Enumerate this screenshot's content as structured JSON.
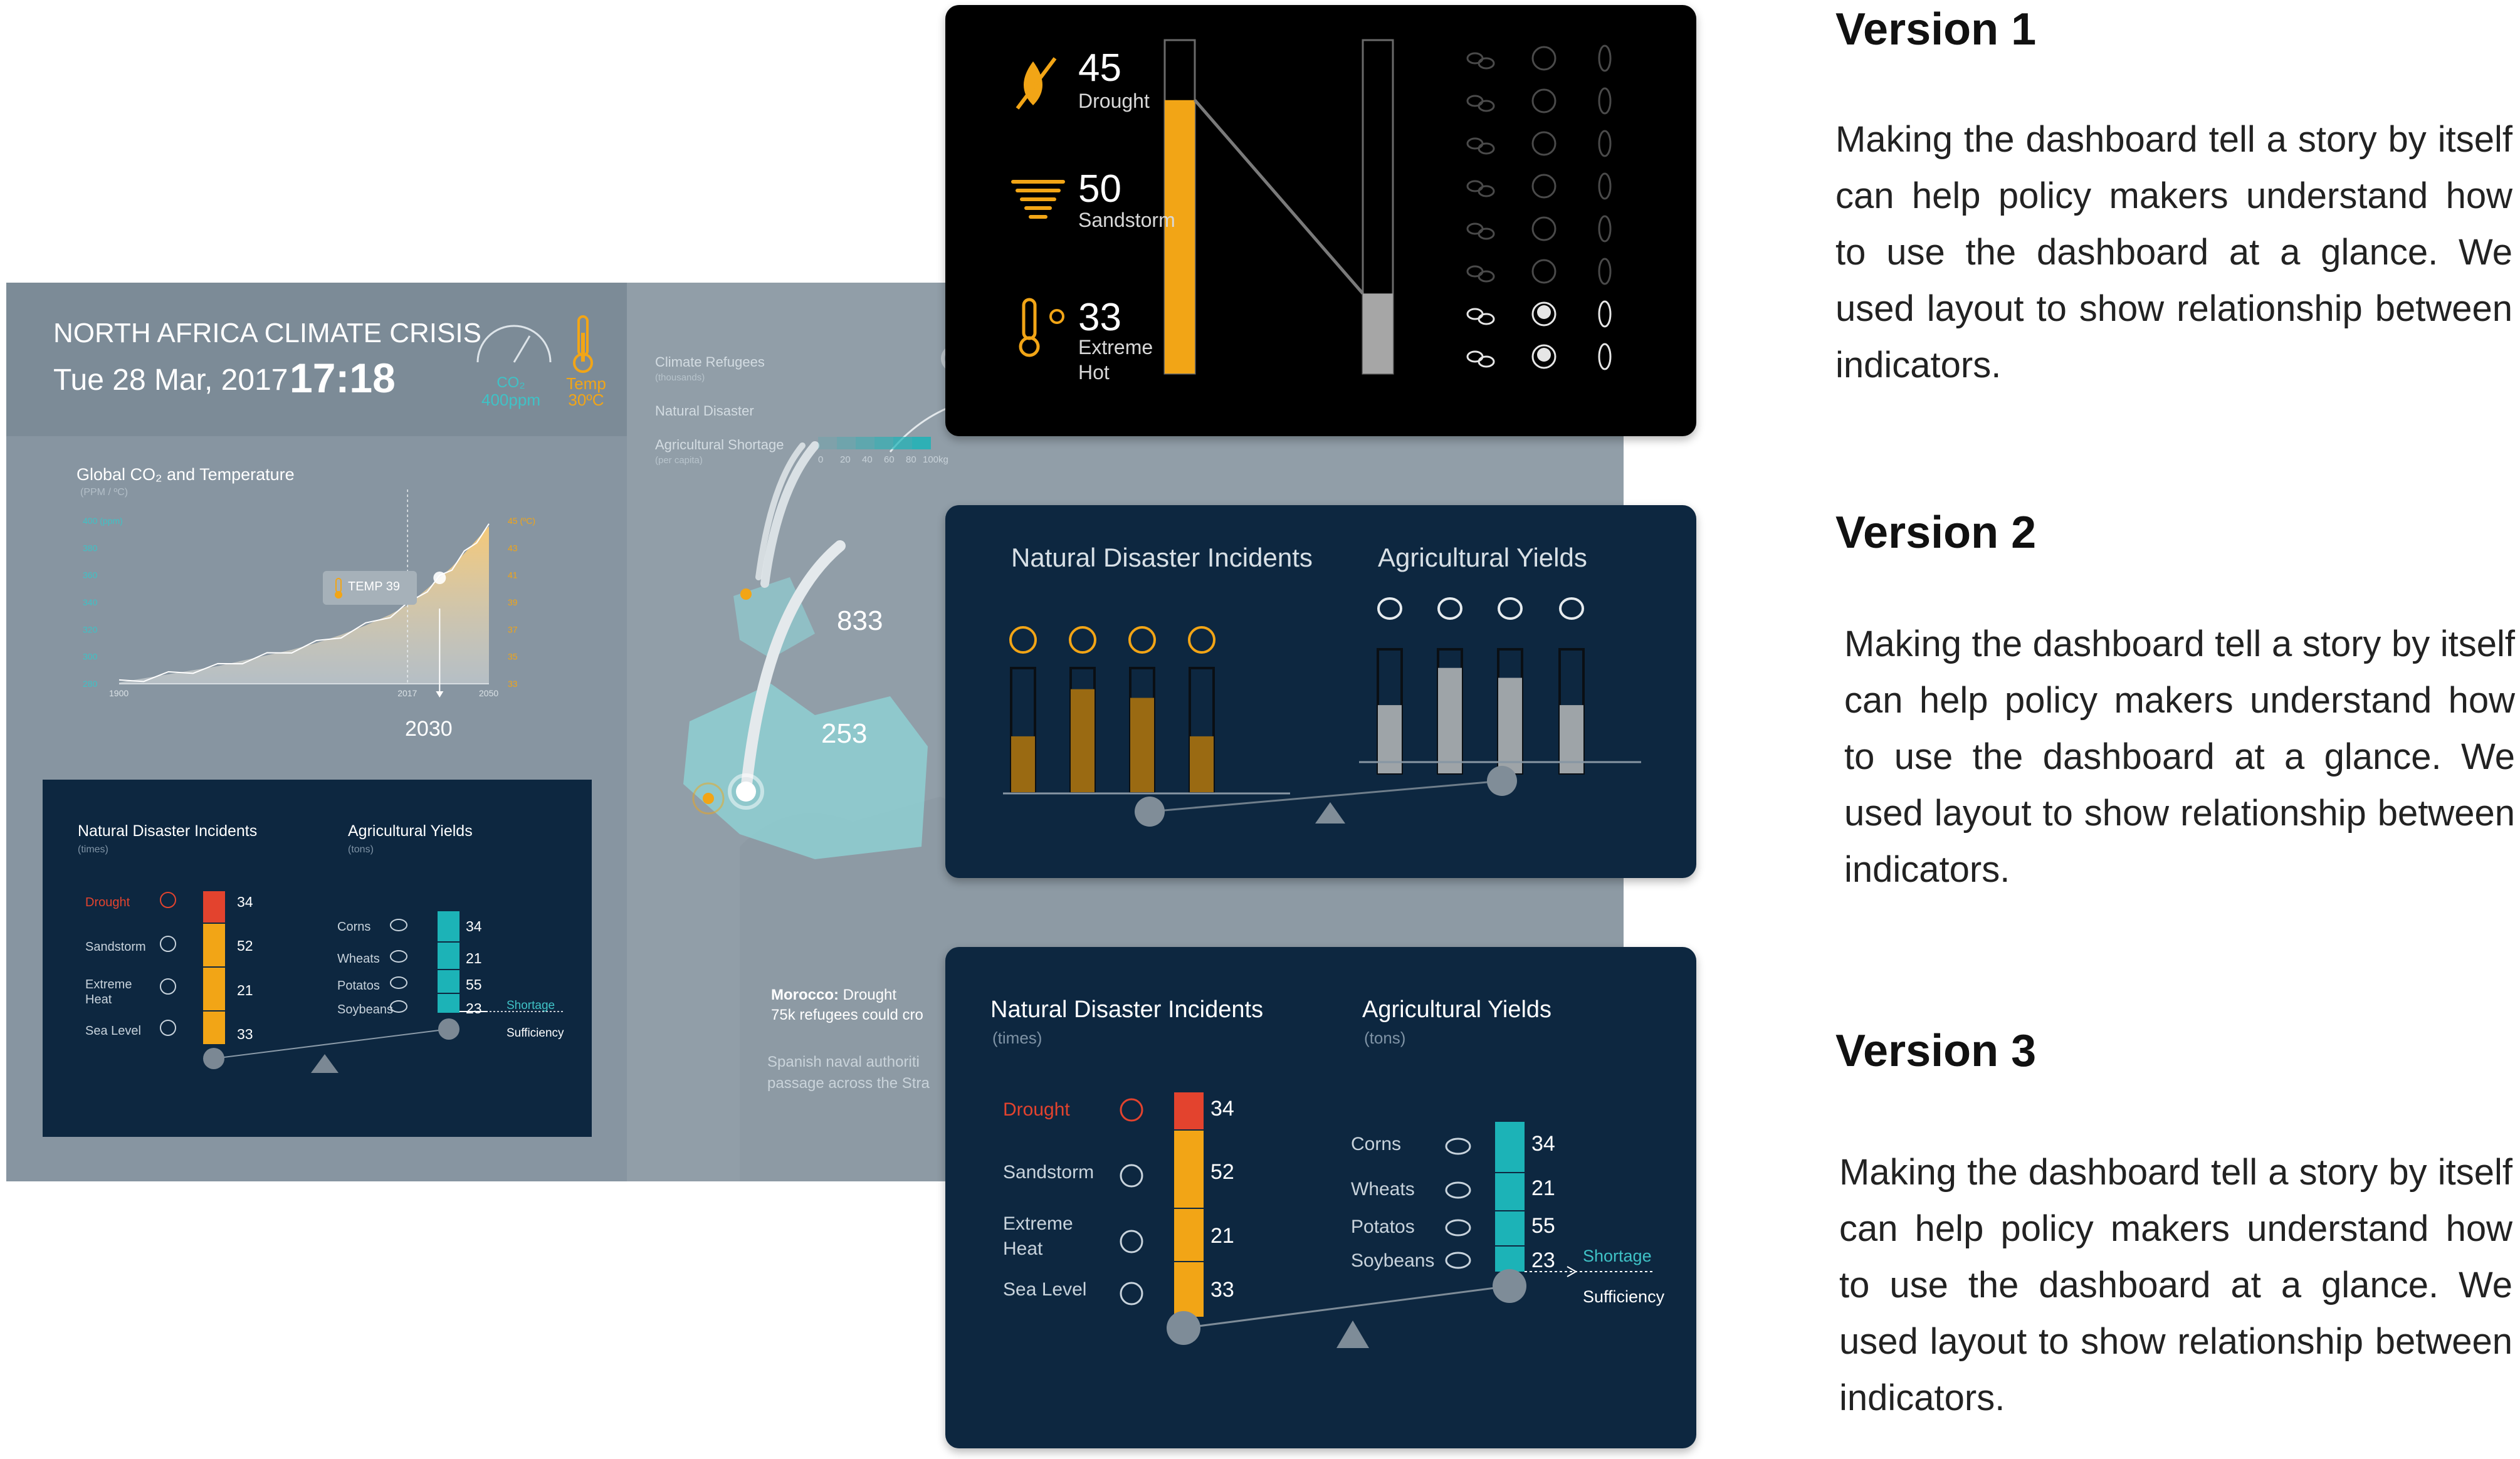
{
  "dashboard": {
    "title": "NORTH AFRICA CLIMATE CRISIS",
    "date": "Tue 28 Mar, 2017",
    "time": "17:18",
    "co2_label": "CO₂",
    "co2_value": "400ppm",
    "temp_label": "Temp",
    "temp_value": "30ºC",
    "chart_title": "Global CO₂ and Temperature",
    "chart_subtitle": "(PPM / ºC)",
    "tooltip": "TEMP 39",
    "year_marker": "2030",
    "legend": {
      "refugees_label": "Climate Refugees",
      "refugees_sub": "(thousands)",
      "disaster_label": "Natural Disaster",
      "shortage_label": "Agricultural Shortage",
      "shortage_sub": "(per capita)",
      "scale": [
        "0",
        "20",
        "40",
        "60",
        "80",
        "100kg"
      ]
    },
    "map_values": [
      "833",
      "253"
    ],
    "morocco_title": "Morocco:",
    "morocco_rest": " Drought",
    "morocco_line2": "75k refugees could cro",
    "spanish_line1": "Spanish naval authoriti",
    "spanish_line2": "passage across the Stra"
  },
  "chart_data": {
    "type": "area",
    "title": "Global CO₂ and Temperature",
    "x_ticks": [
      "1900",
      "2017",
      "2050"
    ],
    "y_left_ticks": [
      "400 (ppm)",
      "380",
      "360",
      "340",
      "320",
      "300",
      "280"
    ],
    "y_right_ticks": [
      "45 (ºC)",
      "43",
      "41",
      "39",
      "37",
      "35",
      "33"
    ],
    "xlim": [
      1900,
      2050
    ],
    "ylim": [
      280,
      400
    ],
    "series": [
      {
        "values": [
          [
            1900,
            281
          ],
          [
            1910,
            284
          ],
          [
            1920,
            287
          ],
          [
            1930,
            290
          ],
          [
            1940,
            293
          ],
          [
            1950,
            297
          ],
          [
            1960,
            301
          ],
          [
            1970,
            305
          ],
          [
            1980,
            310
          ],
          [
            1990,
            316
          ],
          [
            2000,
            323
          ],
          [
            2010,
            331
          ],
          [
            2017,
            338
          ],
          [
            2025,
            350
          ],
          [
            2030,
            358
          ],
          [
            2035,
            366
          ],
          [
            2040,
            376
          ],
          [
            2045,
            386
          ],
          [
            2050,
            396
          ]
        ]
      }
    ]
  },
  "bg_panel": {
    "left_title": "Natural Disaster Incidents",
    "left_sub": "(times)",
    "right_title": "Agricultural Yields",
    "right_sub": "(tons)",
    "disasters": [
      {
        "label": "Drought",
        "value": "34"
      },
      {
        "label": "Sandstorm",
        "value": "52"
      },
      {
        "label": "Extreme",
        "label2": "Heat",
        "value": "21"
      },
      {
        "label": "Sea Level",
        "value": "33"
      }
    ],
    "yields": [
      {
        "label": "Corns",
        "value": "34"
      },
      {
        "label": "Wheats",
        "value": "21"
      },
      {
        "label": "Potatos",
        "value": "55"
      },
      {
        "label": "Soybeans",
        "value": "23"
      }
    ],
    "shortage": "Shortage",
    "sufficiency": "Sufficiency"
  },
  "v1": {
    "items": [
      {
        "value": "45",
        "label": "Drought",
        "icon": "drought-icon"
      },
      {
        "value": "50",
        "label": "Sandstorm",
        "icon": "sandstorm-icon"
      },
      {
        "value": "33",
        "label": "Extreme",
        "label2": "Hot",
        "icon": "extreme-heat-icon"
      }
    ],
    "left_bar_fill": 0.82,
    "right_bar_fill": 0.24
  },
  "v2": {
    "left_title": "Natural Disaster Incidents",
    "right_title": "Agricultural Yields",
    "left_fills": [
      0.45,
      0.83,
      0.76,
      0.45
    ],
    "right_fills": [
      0.55,
      0.85,
      0.77,
      0.55
    ]
  },
  "v3": {
    "left_title": "Natural Disaster Incidents",
    "left_sub": "(times)",
    "right_title": "Agricultural Yields",
    "right_sub": "(tons)",
    "disasters": [
      {
        "label": "Drought",
        "value": "34"
      },
      {
        "label": "Sandstorm",
        "value": "52"
      },
      {
        "label": "Extreme",
        "label2": "Heat",
        "value": "21"
      },
      {
        "label": "Sea Level",
        "value": "33"
      }
    ],
    "yields": [
      {
        "label": "Corns",
        "value": "34"
      },
      {
        "label": "Wheats",
        "value": "21"
      },
      {
        "label": "Potatos",
        "value": "55"
      },
      {
        "label": "Soybeans",
        "value": "23"
      }
    ],
    "shortage": "Shortage",
    "sufficiency": "Sufficiency"
  },
  "versions": [
    {
      "title": "Version 1",
      "desc": "Making the dashboard tell a story by itself can help policy makers understand how to use the dashboard at a glance. We used layout to show relationship between indicators."
    },
    {
      "title": "Version 2",
      "desc": "Making the dashboard tell a story by itself can help policy makers understand how to use the dashboard at a glance. We used layout to show relationship between indicators."
    },
    {
      "title": "Version 3",
      "desc": "Making the dashboard tell a story by itself can help policy makers understand how to use the dashboard at a glance. We used layout to show relationship between indicators."
    }
  ],
  "colors": {
    "orange": "#f2a516",
    "teal": "#1cb3b7",
    "red": "#e3432e",
    "navy": "#0d2740",
    "grey_bar": "#9ea4a8"
  }
}
